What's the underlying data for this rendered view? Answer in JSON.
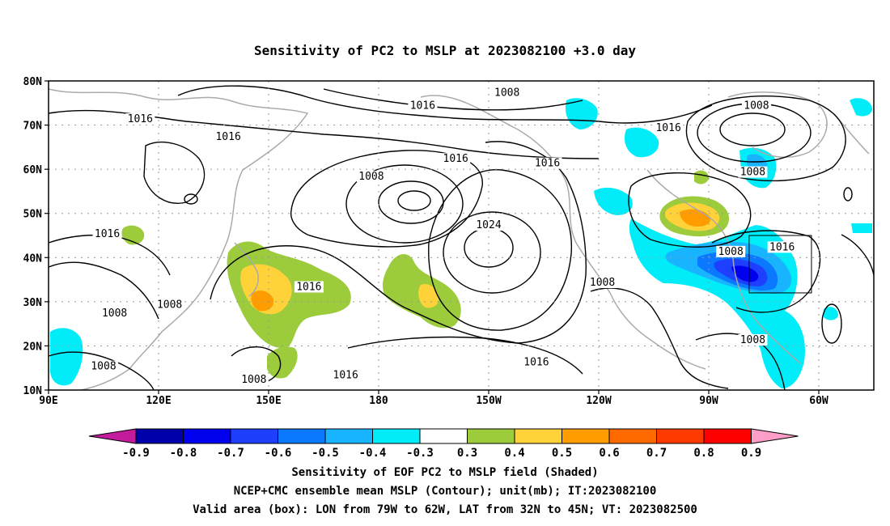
{
  "title": "Sensitivity of PC2 to MSLP at 2023082100 +3.0 day",
  "map": {
    "lat_ticks": [
      "80N",
      "70N",
      "60N",
      "50N",
      "40N",
      "30N",
      "20N",
      "10N"
    ],
    "lon_ticks": [
      "90E",
      "120E",
      "150E",
      "180",
      "150W",
      "120W",
      "90W",
      "60W"
    ],
    "lat_range": [
      10,
      80
    ],
    "lon_range_deg_east": [
      90,
      315
    ],
    "grid": "dotted",
    "valid_box": {
      "lon": [
        -79,
        -62
      ],
      "lat": [
        32,
        45
      ]
    },
    "contour_labels": [
      {
        "text": "1016",
        "lon": 115,
        "lat": 71
      },
      {
        "text": "1016",
        "lon": 139,
        "lat": 67
      },
      {
        "text": "1016",
        "lon": 106,
        "lat": 45
      },
      {
        "text": "1008",
        "lon": 108,
        "lat": 27
      },
      {
        "text": "1008",
        "lon": 123,
        "lat": 29
      },
      {
        "text": "1008",
        "lon": 105,
        "lat": 15
      },
      {
        "text": "1016",
        "lon": 161,
        "lat": 33
      },
      {
        "text": "1008",
        "lon": 146,
        "lat": 12
      },
      {
        "text": "1008",
        "lon": 178,
        "lat": 58
      },
      {
        "text": "1024",
        "lon": 210,
        "lat": 47
      },
      {
        "text": "1016",
        "lon": 192,
        "lat": 74
      },
      {
        "text": "1008",
        "lon": 215,
        "lat": 77
      },
      {
        "text": "1016",
        "lon": 201,
        "lat": 62
      },
      {
        "text": "1016",
        "lon": 226,
        "lat": 61
      },
      {
        "text": "1016",
        "lon": 259,
        "lat": 69
      },
      {
        "text": "1008",
        "lon": 283,
        "lat": 74
      },
      {
        "text": "1008",
        "lon": 282,
        "lat": 59
      },
      {
        "text": "1008",
        "lon": 276,
        "lat": 41
      },
      {
        "text": "1016",
        "lon": 290,
        "lat": 42
      },
      {
        "text": "1008",
        "lon": 241,
        "lat": 34
      },
      {
        "text": "1016",
        "lon": 171,
        "lat": 13
      },
      {
        "text": "1008",
        "lon": 282,
        "lat": 21
      },
      {
        "text": "1016",
        "lon": 223,
        "lat": 16
      }
    ]
  },
  "colorbar": {
    "labels": [
      "-0.9",
      "-0.8",
      "-0.7",
      "-0.6",
      "-0.5",
      "-0.4",
      "-0.3",
      "0.3",
      "0.4",
      "0.5",
      "0.6",
      "0.7",
      "0.8",
      "0.9"
    ],
    "colors": [
      "#0000aa",
      "#0000ee",
      "#1f3fff",
      "#0a78ff",
      "#18b4ff",
      "#00ecf8",
      "#ffffff",
      "#9ccb3c",
      "#ffd23a",
      "#ff9c00",
      "#ff6a00",
      "#ff3a00",
      "#ff0000"
    ],
    "low_end_color": "#c41a9c",
    "high_end_color": "#ff9ec8"
  },
  "caption": {
    "line1": "Sensitivity of EOF PC2 to MSLP field (Shaded)",
    "line2": "NCEP+CMC ensemble mean MSLP (Contour); unit(mb); IT:2023082100",
    "line3": "Valid area (box): LON from 79W to 62W, LAT from 32N to 45N; VT: 2023082500"
  }
}
